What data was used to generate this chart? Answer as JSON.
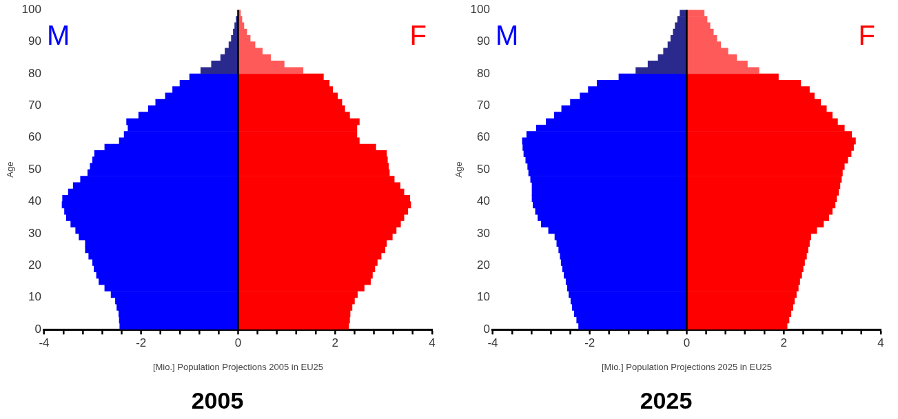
{
  "chart_data": [
    {
      "type": "bar",
      "orientation": "horizontal",
      "stacked": true,
      "title": "2005",
      "xlabel": "[Mio.] Population Projections 2005 in EU25",
      "ylabel": "Age",
      "x": [
        1,
        3,
        5,
        7,
        9,
        11,
        13,
        15,
        17,
        19,
        21,
        23,
        25,
        27,
        29,
        31,
        33,
        35,
        37,
        39,
        41,
        43,
        45,
        47,
        49,
        51,
        53,
        55,
        57,
        59,
        61,
        63,
        65,
        67,
        69,
        71,
        73,
        75,
        77,
        79,
        81,
        83,
        85,
        87,
        89,
        91,
        93,
        95,
        97,
        99
      ],
      "series": [
        {
          "name": "M",
          "colors": [
            "#0000ff",
            "#0000ff",
            "#0000ff",
            "#0000ff",
            "#0000ff",
            "#0000ff",
            "#0000ff",
            "#0000ff",
            "#0000ff",
            "#0000ff",
            "#0000ff",
            "#0000ff",
            "#0000ff",
            "#0000ff",
            "#0000ff",
            "#0000ff",
            "#0000ff",
            "#0000ff",
            "#0000ff",
            "#0000ff",
            "#0000ff",
            "#0000ff",
            "#0000ff",
            "#0000ff",
            "#0000ff",
            "#0000ff",
            "#0000ff",
            "#0000ff",
            "#0000ff",
            "#0000ff",
            "#0000ff",
            "#0000ff",
            "#0000ff",
            "#0000ff",
            "#0000ff",
            "#0000ff",
            "#0000ff",
            "#0000ff",
            "#0000ff",
            "#0000ff",
            "#2a2a8e",
            "#2a2a8e",
            "#2a2a8e",
            "#2a2a8e",
            "#2a2a8e",
            "#2a2a8e",
            "#2a2a8e",
            "#2a2a8e",
            "#2a2a8e",
            "#2a2a8e"
          ],
          "values": [
            -2.44,
            -2.45,
            -2.46,
            -2.5,
            -2.53,
            -2.62,
            -2.75,
            -2.87,
            -2.92,
            -2.97,
            -3.0,
            -3.08,
            -3.15,
            -3.15,
            -3.28,
            -3.35,
            -3.45,
            -3.54,
            -3.58,
            -3.63,
            -3.62,
            -3.5,
            -3.4,
            -3.25,
            -3.1,
            -3.05,
            -3.0,
            -2.96,
            -2.75,
            -2.45,
            -2.35,
            -2.27,
            -2.3,
            -2.05,
            -1.85,
            -1.7,
            -1.5,
            -1.35,
            -1.2,
            -1.0,
            -0.77,
            -0.55,
            -0.36,
            -0.27,
            -0.19,
            -0.14,
            -0.1,
            -0.07,
            -0.04,
            null
          ]
        },
        {
          "name": "F",
          "colors": [
            "#ff0000",
            "#ff0000",
            "#ff0000",
            "#ff0000",
            "#ff0000",
            "#ff0000",
            "#ff0000",
            "#ff0000",
            "#ff0000",
            "#ff0000",
            "#ff0000",
            "#ff0000",
            "#ff0000",
            "#ff0000",
            "#ff0000",
            "#ff0000",
            "#ff0000",
            "#ff0000",
            "#ff0000",
            "#ff0000",
            "#ff0000",
            "#ff0000",
            "#ff0000",
            "#ff0000",
            "#ff0000",
            "#ff0000",
            "#ff0000",
            "#ff0000",
            "#ff0000",
            "#ff0000",
            "#ff0000",
            "#ff0000",
            "#ff0000",
            "#ff0000",
            "#ff0000",
            "#ff0000",
            "#ff0000",
            "#ff0000",
            "#ff0000",
            "#ff0000",
            "#ff5a5a",
            "#ff5a5a",
            "#ff5a5a",
            "#ff5a5a",
            "#ff5a5a",
            "#ff5a5a",
            "#ff5a5a",
            "#ff5a5a",
            "#ff5a5a",
            "#ff5a5a"
          ],
          "values": [
            2.28,
            2.3,
            2.31,
            2.35,
            2.4,
            2.46,
            2.6,
            2.73,
            2.77,
            2.82,
            2.87,
            2.95,
            3.03,
            3.06,
            3.18,
            3.26,
            3.35,
            3.42,
            3.5,
            3.56,
            3.54,
            3.42,
            3.34,
            3.22,
            3.12,
            3.1,
            3.08,
            3.06,
            2.84,
            2.5,
            2.45,
            2.45,
            2.5,
            2.3,
            2.2,
            2.14,
            2.05,
            1.95,
            1.88,
            1.76,
            1.34,
            0.95,
            0.67,
            0.5,
            0.35,
            0.25,
            0.18,
            0.12,
            0.08,
            0.05
          ]
        }
      ],
      "xlim": [
        -4,
        4
      ],
      "xticks": [
        -4,
        {
          "value": -3.6,
          "label": null
        },
        {
          "value": -3.2,
          "label": null
        },
        {
          "value": -2.8,
          "label": null
        },
        {
          "value": -2.4,
          "label": null
        },
        -2,
        {
          "value": -1.6,
          "label": null
        },
        {
          "value": -1.2,
          "label": null
        },
        {
          "value": -0.8,
          "label": null
        },
        {
          "value": -0.4,
          "label": null
        },
        0,
        {
          "value": 0.4,
          "label": null
        },
        {
          "value": 0.8,
          "label": null
        },
        {
          "value": 1.2,
          "label": null
        },
        {
          "value": 1.6,
          "label": null
        },
        2,
        {
          "value": 2.4,
          "label": null
        },
        {
          "value": 2.8,
          "label": null
        },
        {
          "value": 3.2,
          "label": null
        },
        {
          "value": 3.6,
          "label": null
        },
        4
      ],
      "ylim": [
        0,
        100
      ],
      "yticks": [
        0,
        10,
        20,
        30,
        40,
        50,
        60,
        70,
        80,
        90,
        100
      ],
      "ref_lines": [
        {
          "axis": "x",
          "value": 0,
          "color": "#000000"
        }
      ]
    },
    {
      "type": "bar",
      "orientation": "horizontal",
      "stacked": true,
      "title": "2025",
      "xlabel": "[Mio.] Population Projections 2025 in EU25",
      "ylabel": "Age",
      "x": [
        1,
        3,
        5,
        7,
        9,
        11,
        13,
        15,
        17,
        19,
        21,
        23,
        25,
        27,
        29,
        31,
        33,
        35,
        37,
        39,
        41,
        43,
        45,
        47,
        49,
        51,
        53,
        55,
        57,
        59,
        61,
        63,
        65,
        67,
        69,
        71,
        73,
        75,
        77,
        79,
        81,
        83,
        85,
        87,
        89,
        91,
        93,
        95,
        97,
        99
      ],
      "series": [
        {
          "name": "M",
          "colors": [
            "#0000ff",
            "#0000ff",
            "#0000ff",
            "#0000ff",
            "#0000ff",
            "#0000ff",
            "#0000ff",
            "#0000ff",
            "#0000ff",
            "#0000ff",
            "#0000ff",
            "#0000ff",
            "#0000ff",
            "#0000ff",
            "#0000ff",
            "#0000ff",
            "#0000ff",
            "#0000ff",
            "#0000ff",
            "#0000ff",
            "#0000ff",
            "#0000ff",
            "#0000ff",
            "#0000ff",
            "#0000ff",
            "#0000ff",
            "#0000ff",
            "#0000ff",
            "#0000ff",
            "#0000ff",
            "#0000ff",
            "#0000ff",
            "#0000ff",
            "#0000ff",
            "#0000ff",
            "#0000ff",
            "#0000ff",
            "#0000ff",
            "#0000ff",
            "#0000ff",
            "#2a2a8e",
            "#2a2a8e",
            "#2a2a8e",
            "#2a2a8e",
            "#2a2a8e",
            "#2a2a8e",
            "#2a2a8e",
            "#2a2a8e",
            "#2a2a8e",
            "#2a2a8e"
          ],
          "values": [
            -2.23,
            -2.27,
            -2.32,
            -2.36,
            -2.39,
            -2.43,
            -2.46,
            -2.49,
            -2.53,
            -2.56,
            -2.59,
            -2.61,
            -2.64,
            -2.68,
            -2.72,
            -2.85,
            -3.0,
            -3.07,
            -3.12,
            -3.17,
            -3.19,
            -3.19,
            -3.19,
            -3.22,
            -3.26,
            -3.28,
            -3.32,
            -3.36,
            -3.38,
            -3.39,
            -3.3,
            -3.1,
            -2.9,
            -2.73,
            -2.58,
            -2.4,
            -2.2,
            -2.03,
            -1.85,
            -1.4,
            -1.05,
            -0.8,
            -0.59,
            -0.48,
            -0.39,
            -0.33,
            -0.28,
            -0.24,
            -0.19,
            -0.14
          ]
        },
        {
          "name": "F",
          "colors": [
            "#ff0000",
            "#ff0000",
            "#ff0000",
            "#ff0000",
            "#ff0000",
            "#ff0000",
            "#ff0000",
            "#ff0000",
            "#ff0000",
            "#ff0000",
            "#ff0000",
            "#ff0000",
            "#ff0000",
            "#ff0000",
            "#ff0000",
            "#ff0000",
            "#ff0000",
            "#ff0000",
            "#ff0000",
            "#ff0000",
            "#ff0000",
            "#ff0000",
            "#ff0000",
            "#ff0000",
            "#ff0000",
            "#ff0000",
            "#ff0000",
            "#ff0000",
            "#ff0000",
            "#ff0000",
            "#ff0000",
            "#ff0000",
            "#ff0000",
            "#ff0000",
            "#ff0000",
            "#ff0000",
            "#ff0000",
            "#ff0000",
            "#ff0000",
            "#ff0000",
            "#ff5a5a",
            "#ff5a5a",
            "#ff5a5a",
            "#ff5a5a",
            "#ff5a5a",
            "#ff5a5a",
            "#ff5a5a",
            "#ff5a5a",
            "#ff5a5a",
            "#ff5a5a"
          ],
          "values": [
            2.07,
            2.11,
            2.15,
            2.19,
            2.22,
            2.26,
            2.3,
            2.33,
            2.37,
            2.4,
            2.43,
            2.47,
            2.5,
            2.53,
            2.56,
            2.68,
            2.82,
            2.93,
            3.0,
            3.06,
            3.09,
            3.13,
            3.16,
            3.19,
            3.21,
            3.25,
            3.32,
            3.39,
            3.44,
            3.48,
            3.4,
            3.25,
            3.11,
            3.0,
            2.88,
            2.76,
            2.63,
            2.53,
            2.35,
            1.89,
            1.49,
            1.25,
            1.03,
            0.85,
            0.7,
            0.62,
            0.55,
            0.48,
            0.42,
            0.36
          ]
        }
      ],
      "xlim": [
        -4,
        4
      ],
      "xticks": [
        -4,
        {
          "value": -3.6,
          "label": null
        },
        {
          "value": -3.2,
          "label": null
        },
        {
          "value": -2.8,
          "label": null
        },
        {
          "value": -2.4,
          "label": null
        },
        -2,
        {
          "value": -1.6,
          "label": null
        },
        {
          "value": -1.2,
          "label": null
        },
        {
          "value": -0.8,
          "label": null
        },
        {
          "value": -0.4,
          "label": null
        },
        0,
        {
          "value": 0.4,
          "label": null
        },
        {
          "value": 0.8,
          "label": null
        },
        {
          "value": 1.2,
          "label": null
        },
        {
          "value": 1.6,
          "label": null
        },
        2,
        {
          "value": 2.4,
          "label": null
        },
        {
          "value": 2.8,
          "label": null
        },
        {
          "value": 3.2,
          "label": null
        },
        {
          "value": 3.6,
          "label": null
        },
        4
      ],
      "ylim": [
        0,
        100
      ],
      "yticks": [
        0,
        10,
        20,
        30,
        40,
        50,
        60,
        70,
        80,
        90,
        100
      ],
      "ref_lines": [
        {
          "axis": "x",
          "value": 0,
          "color": "#000000"
        }
      ]
    }
  ]
}
